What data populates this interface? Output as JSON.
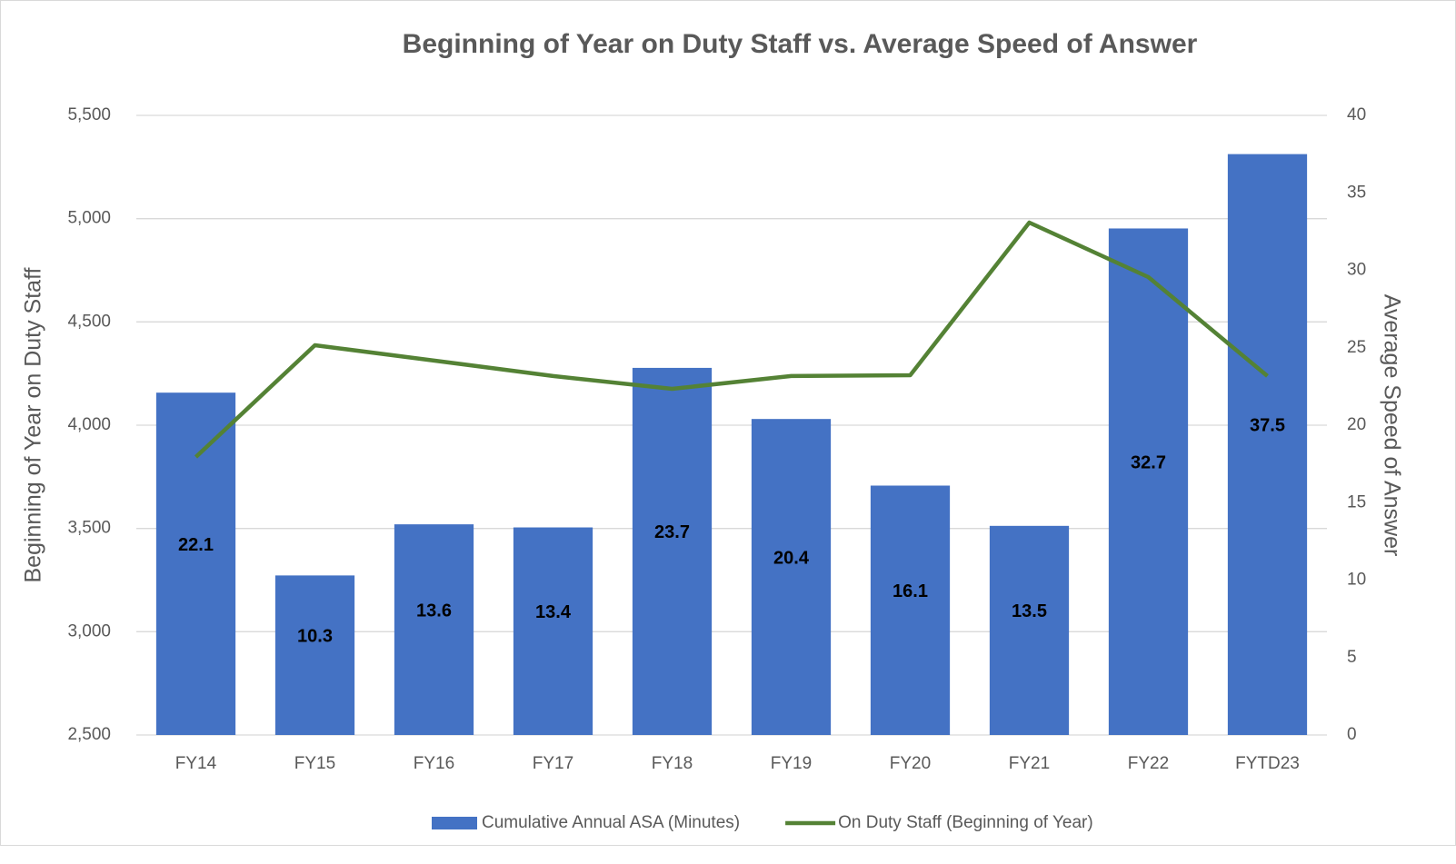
{
  "chart_data": {
    "type": "bar",
    "title": "Beginning of Year on Duty Staff vs. Average Speed of Answer",
    "ylabel": "Beginning of Year on Duty Staff",
    "y2label": "Average Speed of Answer",
    "categories": [
      "FY14",
      "FY15",
      "FY16",
      "FY17",
      "FY18",
      "FY19",
      "FY20",
      "FY21",
      "FY22",
      "FYTD23"
    ],
    "series": [
      {
        "name": "Cumulative Annual ASA (Minutes)",
        "type": "bar",
        "axis": "y2",
        "color": "#4472c4",
        "values": [
          22.1,
          10.3,
          13.6,
          13.4,
          23.7,
          20.4,
          16.1,
          13.5,
          32.7,
          37.5
        ]
      },
      {
        "name": "On Duty Staff (Beginning of Year)",
        "type": "line",
        "color": "#548235",
        "values": [
          3846,
          4387,
          4313,
          4238,
          4176,
          4238,
          4242,
          4981,
          4717,
          4238
        ]
      }
    ],
    "ylim": [
      2500,
      5500
    ],
    "yticks": [
      {
        "value": 2500,
        "label": "2,500"
      },
      {
        "value": 3000,
        "label": "3,000"
      },
      {
        "value": 3500,
        "label": "3,500"
      },
      {
        "value": 4000,
        "label": "4,000"
      },
      {
        "value": 4500,
        "label": "4,500"
      },
      {
        "value": 5000,
        "label": "5,000"
      },
      {
        "value": 5500,
        "label": "5,500"
      }
    ],
    "y2lim": [
      0,
      40
    ],
    "y2ticks": [
      0,
      5,
      10,
      15,
      20,
      25,
      30,
      35,
      40
    ],
    "grid": true,
    "legend": "bottom"
  }
}
